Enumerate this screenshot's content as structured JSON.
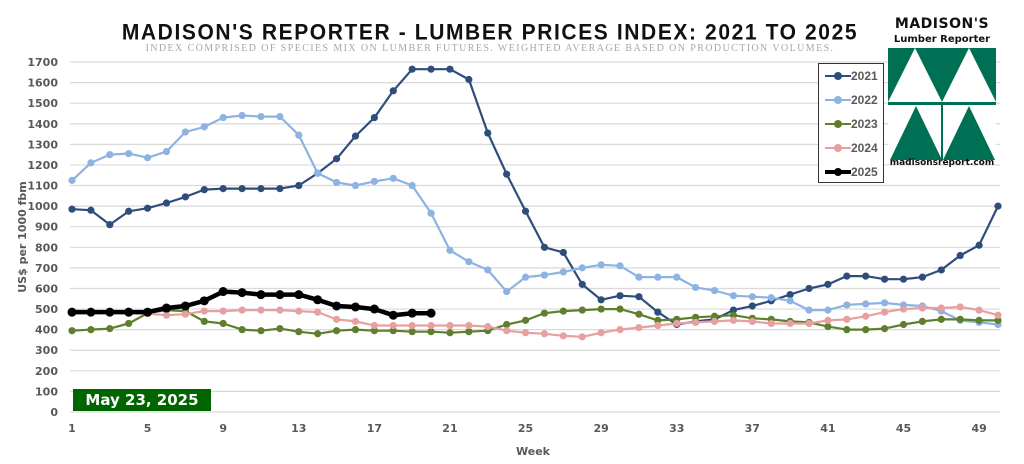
{
  "chart_data": {
    "type": "line",
    "title": "MADISON'S REPORTER - LUMBER PRICES INDEX: 2021 TO 2025",
    "subtitle": "INDEX COMPRISED OF SPECIES MIX ON LUMBER FUTURES. WEIGHTED AVERAGE BASED ON PRODUCTION VOLUMES.",
    "xlabel": "Week",
    "ylabel": "US$ per 1000 fbm",
    "xlim": [
      1,
      50
    ],
    "ylim": [
      0,
      1700
    ],
    "x_ticks": [
      1,
      5,
      9,
      13,
      17,
      21,
      25,
      29,
      33,
      37,
      41,
      45,
      49
    ],
    "y_ticks": [
      0,
      100,
      200,
      300,
      400,
      500,
      600,
      700,
      800,
      900,
      1000,
      1100,
      1200,
      1300,
      1400,
      1500,
      1600,
      1700
    ],
    "grid": "horizontal",
    "legend_position": "top-right",
    "annotation": "May 23, 2025",
    "series": [
      {
        "name": "2021",
        "color": "#2e4d7b",
        "values": [
          985,
          980,
          910,
          975,
          990,
          1015,
          1045,
          1080,
          1085,
          1085,
          1085,
          1085,
          1100,
          1160,
          1230,
          1340,
          1430,
          1560,
          1665,
          1665,
          1665,
          1615,
          1355,
          1155,
          975,
          800,
          775,
          620,
          545,
          565,
          560,
          485,
          425,
          440,
          450,
          495,
          515,
          540,
          570,
          600,
          620,
          660,
          660,
          645,
          645,
          655,
          690,
          760,
          810,
          1000
        ]
      },
      {
        "name": "2022",
        "color": "#8db3e2",
        "values": [
          1125,
          1210,
          1250,
          1255,
          1235,
          1265,
          1360,
          1385,
          1430,
          1440,
          1435,
          1435,
          1345,
          1160,
          1115,
          1100,
          1120,
          1135,
          1100,
          965,
          785,
          730,
          690,
          585,
          655,
          665,
          680,
          700,
          715,
          710,
          655,
          655,
          655,
          605,
          590,
          565,
          560,
          555,
          540,
          495,
          495,
          520,
          525,
          530,
          520,
          515,
          490,
          445,
          435,
          425
        ]
      },
      {
        "name": "2023",
        "color": "#5e7f2e",
        "values": [
          395,
          400,
          405,
          430,
          480,
          495,
          490,
          440,
          430,
          400,
          395,
          405,
          390,
          380,
          395,
          400,
          395,
          395,
          390,
          390,
          385,
          390,
          395,
          425,
          445,
          480,
          490,
          495,
          500,
          500,
          475,
          445,
          450,
          460,
          465,
          470,
          455,
          450,
          440,
          435,
          415,
          400,
          400,
          405,
          425,
          440,
          450,
          450,
          445,
          445
        ]
      },
      {
        "name": "2024",
        "color": "#e6a0a0",
        "values": [
          480,
          482,
          485,
          480,
          478,
          470,
          475,
          490,
          490,
          495,
          495,
          495,
          490,
          485,
          450,
          440,
          420,
          420,
          420,
          420,
          420,
          420,
          415,
          395,
          385,
          380,
          370,
          365,
          385,
          400,
          410,
          420,
          430,
          435,
          440,
          445,
          440,
          430,
          430,
          430,
          445,
          450,
          465,
          485,
          500,
          505,
          505,
          510,
          495,
          470
        ]
      },
      {
        "name": "2025",
        "color": "#000000",
        "values": [
          485,
          485,
          485,
          485,
          485,
          505,
          515,
          540,
          585,
          580,
          570,
          570,
          570,
          545,
          515,
          510,
          500,
          470,
          480,
          480
        ]
      }
    ]
  },
  "logo": {
    "name": "MADISON'S",
    "sub": "Lumber Reporter",
    "url": "madisonsreport.com"
  }
}
